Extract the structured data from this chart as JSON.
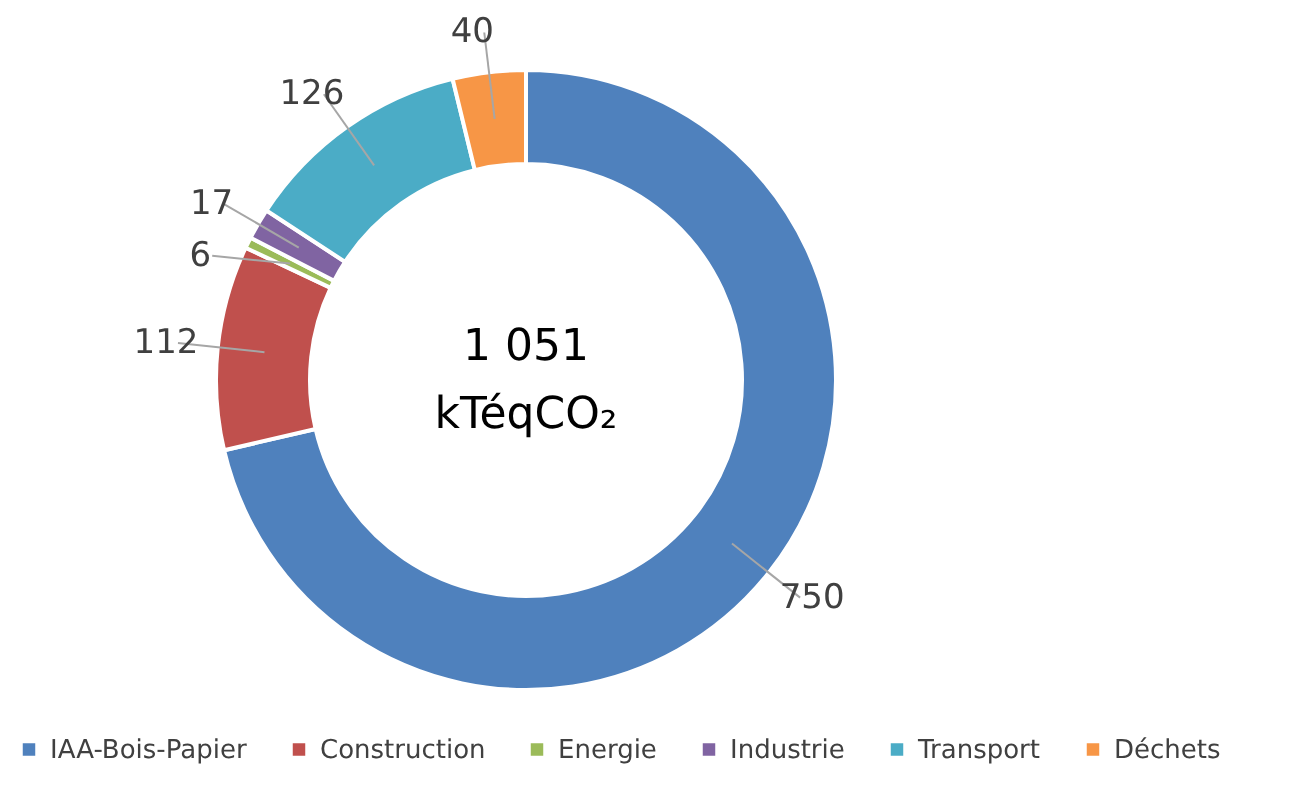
{
  "chart_data": {
    "type": "donut",
    "categories": [
      "IAA-Bois-Papier",
      "Construction",
      "Energie",
      "Industrie",
      "Transport",
      "Déchets"
    ],
    "values": [
      750,
      112,
      6,
      17,
      126,
      40
    ],
    "colors": [
      "#4f81bd",
      "#c0504d",
      "#9bbb59",
      "#8064a2",
      "#4bacc6",
      "#f79646"
    ],
    "annotations": [
      "1 051",
      "kTéqCO₂"
    ],
    "data_labels": true,
    "legend": "bottom"
  }
}
